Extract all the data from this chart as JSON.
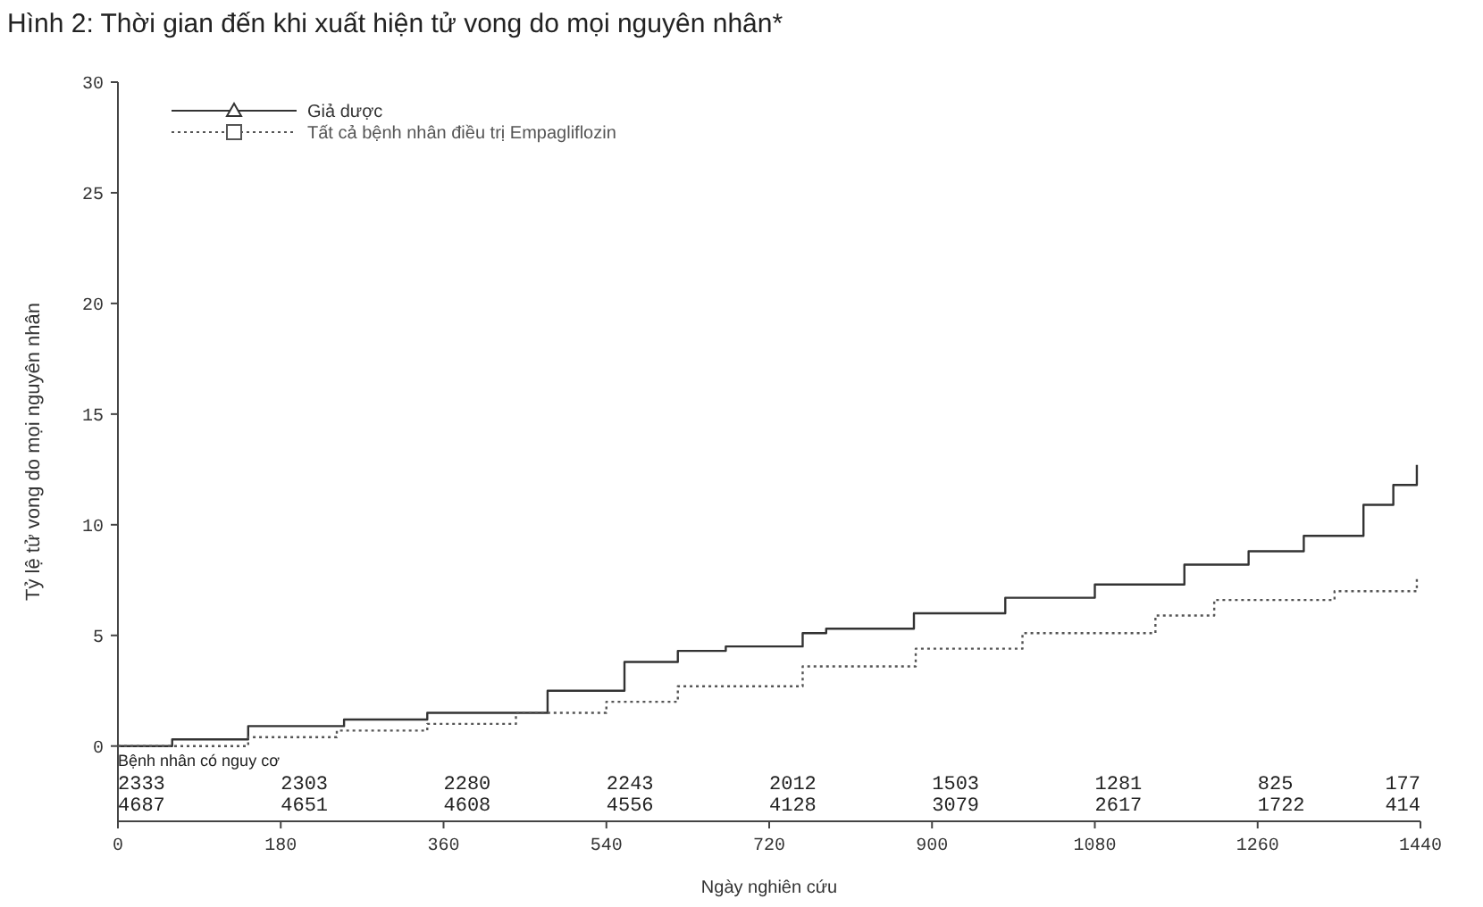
{
  "chart_data": {
    "type": "step",
    "title": "Hình 2: Thời gian đến khi xuất hiện tử vong do mọi nguyên nhân*",
    "xlabel": "Ngày nghiên cứu",
    "ylabel": "Tỷ lệ tử vong do mọi nguyên nhân",
    "series": [
      {
        "name": "Giả dược",
        "color": "#333333",
        "line_style": "solid",
        "x": [
          0,
          60,
          144,
          250,
          342,
          475,
          560,
          619,
          672,
          757,
          783,
          880,
          981,
          1080,
          1179,
          1250,
          1311,
          1377,
          1410,
          1436
        ],
        "values": [
          0,
          0.3,
          0.9,
          1.2,
          1.5,
          2.5,
          3.8,
          4.3,
          4.5,
          5.1,
          5.3,
          6.0,
          6.7,
          7.3,
          8.2,
          8.8,
          9.5,
          10.9,
          11.8,
          12.7
        ]
      },
      {
        "name": "Tất cả bệnh nhân điều trị Empagliflozin",
        "color": "#555555",
        "line_style": "dotted",
        "x": [
          0,
          144,
          242,
          342,
          440,
          540,
          619,
          757,
          882,
          1000,
          1147,
          1212,
          1345,
          1436
        ],
        "values": [
          0,
          0.4,
          0.7,
          1.0,
          1.5,
          2.0,
          2.7,
          3.6,
          4.4,
          5.1,
          5.9,
          6.6,
          7.0,
          7.6
        ]
      }
    ],
    "xlim": [
      0,
      1440
    ],
    "xticks": [
      0,
      180,
      360,
      540,
      720,
      900,
      1080,
      1260,
      1440
    ],
    "ylim": [
      -3.4,
      30
    ],
    "yticks": [
      0,
      5,
      10,
      15,
      20,
      25,
      30
    ],
    "legend": "top left",
    "grid": false,
    "annotations": [
      "Bệnh nhân có nguy cơ",
      "2333",
      "2303",
      "2280",
      "2243",
      "2012",
      "1503",
      "1281",
      "825",
      "177",
      "4687",
      "4651",
      "4608",
      "4556",
      "4128",
      "3079",
      "2617",
      "1722",
      "414"
    ]
  }
}
